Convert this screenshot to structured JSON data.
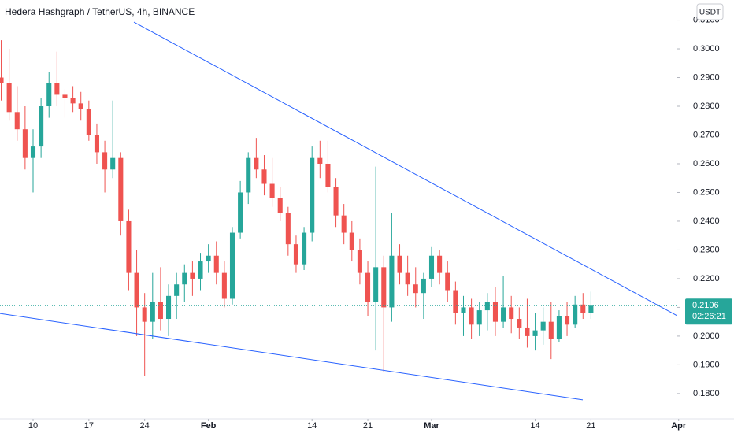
{
  "chart_data": {
    "type": "candlestick",
    "title": "Hedera Hashgraph / TetherUS, 4h, BINANCE",
    "currency": "USDT",
    "x": [
      6,
      7,
      8,
      9,
      10,
      11,
      12,
      13,
      14,
      15,
      16,
      17,
      18,
      19,
      20,
      21,
      22,
      23,
      24,
      25,
      26,
      27,
      28,
      29,
      30,
      31,
      32,
      33,
      34,
      35,
      36,
      37,
      38,
      39,
      40,
      41,
      42,
      43,
      44,
      45,
      46,
      47,
      48,
      49,
      50,
      51,
      52,
      53,
      54,
      55,
      56,
      57,
      58,
      59,
      60,
      61,
      62,
      63,
      64,
      65,
      66,
      67,
      68,
      69,
      70,
      71,
      72,
      73,
      74,
      75,
      76,
      77,
      78,
      79,
      80
    ],
    "open": [
      0.29,
      0.288,
      0.278,
      0.272,
      0.262,
      0.266,
      0.28,
      0.288,
      0.284,
      0.283,
      0.281,
      0.279,
      0.27,
      0.264,
      0.258,
      0.262,
      0.24,
      0.222,
      0.21,
      0.205,
      0.212,
      0.206,
      0.214,
      0.218,
      0.222,
      0.22,
      0.226,
      0.228,
      0.222,
      0.213,
      0.236,
      0.25,
      0.262,
      0.258,
      0.253,
      0.248,
      0.243,
      0.232,
      0.225,
      0.236,
      0.262,
      0.26,
      0.252,
      0.242,
      0.236,
      0.23,
      0.222,
      0.212,
      0.224,
      0.21,
      0.228,
      0.222,
      0.218,
      0.215,
      0.22,
      0.228,
      0.222,
      0.216,
      0.208,
      0.21,
      0.204,
      0.209,
      0.212,
      0.205,
      0.21,
      0.206,
      0.203,
      0.2,
      0.202,
      0.205,
      0.199,
      0.207,
      0.204,
      0.211,
      0.208
    ],
    "high": [
      0.303,
      0.3,
      0.287,
      0.28,
      0.272,
      0.283,
      0.292,
      0.299,
      0.286,
      0.287,
      0.285,
      0.282,
      0.274,
      0.268,
      0.282,
      0.264,
      0.244,
      0.23,
      0.215,
      0.222,
      0.224,
      0.218,
      0.222,
      0.225,
      0.226,
      0.229,
      0.232,
      0.233,
      0.226,
      0.238,
      0.254,
      0.264,
      0.269,
      0.263,
      0.262,
      0.252,
      0.245,
      0.235,
      0.238,
      0.266,
      0.268,
      0.268,
      0.255,
      0.246,
      0.24,
      0.234,
      0.226,
      0.259,
      0.228,
      0.243,
      0.232,
      0.228,
      0.224,
      0.222,
      0.231,
      0.23,
      0.226,
      0.219,
      0.214,
      0.213,
      0.212,
      0.215,
      0.217,
      0.221,
      0.214,
      0.21,
      0.213,
      0.208,
      0.21,
      0.212,
      0.209,
      0.212,
      0.214,
      0.215,
      0.2155
    ],
    "low": [
      0.282,
      0.275,
      0.268,
      0.258,
      0.25,
      0.262,
      0.276,
      0.28,
      0.276,
      0.278,
      0.275,
      0.268,
      0.26,
      0.25,
      0.255,
      0.235,
      0.216,
      0.2,
      0.186,
      0.199,
      0.202,
      0.2,
      0.206,
      0.212,
      0.214,
      0.216,
      0.222,
      0.218,
      0.21,
      0.211,
      0.234,
      0.246,
      0.255,
      0.249,
      0.245,
      0.24,
      0.228,
      0.222,
      0.223,
      0.233,
      0.255,
      0.25,
      0.238,
      0.232,
      0.226,
      0.218,
      0.207,
      0.195,
      0.1875,
      0.205,
      0.218,
      0.214,
      0.21,
      0.206,
      0.217,
      0.218,
      0.212,
      0.204,
      0.2,
      0.199,
      0.2,
      0.202,
      0.2,
      0.203,
      0.201,
      0.199,
      0.196,
      0.195,
      0.197,
      0.192,
      0.198,
      0.2,
      0.203,
      0.206,
      0.206
    ],
    "close": [
      0.288,
      0.278,
      0.272,
      0.262,
      0.266,
      0.28,
      0.288,
      0.284,
      0.283,
      0.281,
      0.279,
      0.27,
      0.264,
      0.258,
      0.262,
      0.24,
      0.222,
      0.21,
      0.205,
      0.212,
      0.206,
      0.214,
      0.218,
      0.222,
      0.22,
      0.226,
      0.228,
      0.222,
      0.213,
      0.236,
      0.25,
      0.262,
      0.258,
      0.253,
      0.248,
      0.243,
      0.232,
      0.225,
      0.236,
      0.262,
      0.26,
      0.252,
      0.242,
      0.236,
      0.23,
      0.222,
      0.212,
      0.224,
      0.21,
      0.228,
      0.222,
      0.218,
      0.215,
      0.22,
      0.228,
      0.222,
      0.216,
      0.208,
      0.21,
      0.204,
      0.209,
      0.212,
      0.205,
      0.21,
      0.206,
      0.203,
      0.2,
      0.202,
      0.205,
      0.199,
      0.207,
      0.204,
      0.211,
      0.208,
      0.2106
    ],
    "up_color": "#26a69a",
    "down_color": "#ef5350",
    "trendlines": [
      {
        "color": "#2962ff",
        "x": [
          22.65,
          90.83
        ],
        "y": [
          0.3093,
          0.2071
        ]
      },
      {
        "color": "#2962ff",
        "x": [
          5.85,
          78.97
        ],
        "y": [
          0.2079,
          0.1778
        ]
      }
    ],
    "last_price": 0.2106,
    "countdown": "02:26:21",
    "last_price_color": "#26a69a",
    "xlim": [
      5.85,
      90.83
    ],
    "ylim": [
      0.1712,
      0.317
    ],
    "xticks": [
      10,
      17,
      24,
      {
        "value": 32,
        "label": "Feb"
      },
      {
        "value": 45,
        "label": "14"
      },
      {
        "value": 52,
        "label": "21"
      },
      {
        "value": 60,
        "label": "Mar"
      },
      {
        "value": 73,
        "label": "14"
      },
      {
        "value": 80,
        "label": "21"
      },
      {
        "value": 91,
        "label": "Apr"
      }
    ],
    "yticks": [
      {
        "value": 0.18,
        "label": "0.1800"
      },
      {
        "value": 0.19,
        "label": "0.1900"
      },
      {
        "value": 0.2,
        "label": "0.2000"
      },
      {
        "value": 0.21,
        "label": "0.2100"
      },
      {
        "value": 0.22,
        "label": "0.2200"
      },
      {
        "value": 0.23,
        "label": "0.2300"
      },
      {
        "value": 0.24,
        "label": "0.2400"
      },
      {
        "value": 0.25,
        "label": "0.2500"
      },
      {
        "value": 0.26,
        "label": "0.2600"
      },
      {
        "value": 0.27,
        "label": "0.2700"
      },
      {
        "value": 0.28,
        "label": "0.2800"
      },
      {
        "value": 0.29,
        "label": "0.2900"
      },
      {
        "value": 0.3,
        "label": "0.3000"
      },
      {
        "value": 0.31,
        "label": "0.3100"
      }
    ],
    "grid": false
  }
}
